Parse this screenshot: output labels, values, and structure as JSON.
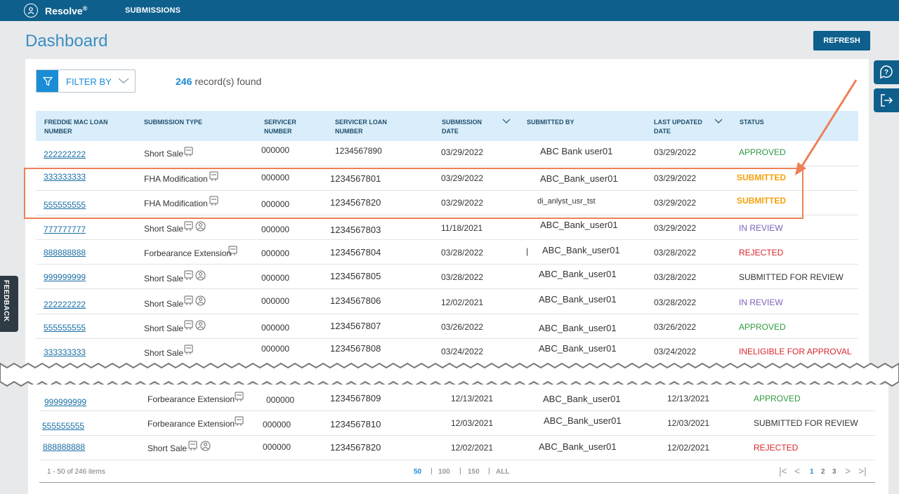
{
  "app": {
    "name": "Resolve",
    "reg": "®",
    "nav": "SUBMISSIONS"
  },
  "page": {
    "title": "Dashboard",
    "refresh_label": "REFRESH"
  },
  "feedback_label": "FEEDBACK",
  "filter": {
    "label": "FILTER BY"
  },
  "records": {
    "count": "246",
    "label": "record(s) found"
  },
  "columns": [
    "FREDDIE MAC LOAN NUMBER",
    "SUBMISSION TYPE",
    "SERVICER NUMBER",
    "SERVICER LOAN NUMBER",
    "SUBMISSION DATE",
    "SUBMITTED BY",
    "LAST UPDATED DATE",
    "STATUS"
  ],
  "rows": [
    {
      "loan": "222222222",
      "type": "Short Sale",
      "servicer": "000000",
      "servicer_loan": "1234567890",
      "sub_date": "03/29/2022",
      "by": "ABC  Bank  user01",
      "updated": "03/29/2022",
      "status": "APPROVED"
    },
    {
      "loan": "333333333",
      "type": "FHA Modification",
      "servicer": "000000",
      "servicer_loan": "1234567801",
      "sub_date": "03/29/2022",
      "by": "ABC_Bank_user01",
      "updated": "03/29/2022",
      "status": "SUBMITTED"
    },
    {
      "loan": "555555555",
      "type": "FHA Modification",
      "servicer": "000000",
      "servicer_loan": "1234567820",
      "sub_date": "03/29/2022",
      "by": "di_anlyst_usr_tst",
      "updated": "03/29/2022",
      "status": "SUBMITTED"
    },
    {
      "loan": "777777777",
      "type": "Short Sale",
      "servicer": "000000",
      "servicer_loan": "1234567803",
      "sub_date": "11/18/2021",
      "by": "ABC_Bank_user01",
      "updated": "03/29/2022",
      "status": "IN REVIEW"
    },
    {
      "loan": "888888888",
      "type": "Forbearance Extension",
      "servicer": "000000",
      "servicer_loan": "1234567804",
      "sub_date": "03/28/2022",
      "by": "ABC_Bank_user01",
      "updated": "03/28/2022",
      "status": "REJECTED"
    },
    {
      "loan": "999999999",
      "type": "Short Sale",
      "servicer": "000000",
      "servicer_loan": "1234567805",
      "sub_date": "03/28/2022",
      "by": "ABC_Bank_user01",
      "updated": "03/28/2022",
      "status": "SUBMITTED FOR REVIEW"
    },
    {
      "loan": "222222222",
      "type": "Short Sale",
      "servicer": "000000",
      "servicer_loan": "1234567806",
      "sub_date": "12/02/2021",
      "by": "ABC_Bank_user01",
      "updated": "03/28/2022",
      "status": "IN REVIEW"
    },
    {
      "loan": "555555555",
      "type": "Short Sale",
      "servicer": "000000",
      "servicer_loan": "1234567807",
      "sub_date": "03/26/2022",
      "by": "ABC_Bank_user01",
      "updated": "03/26/2022",
      "status": "APPROVED"
    },
    {
      "loan": "333333333",
      "type": "Short Sale",
      "servicer": "000000",
      "servicer_loan": "1234567808",
      "sub_date": "03/24/2022",
      "by": "ABC_Bank_user01",
      "updated": "03/24/2022",
      "status": "INELIGIBLE FOR APPROVAL"
    }
  ],
  "rows_bottom": [
    {
      "loan": "999999999",
      "type": "Forbearance Extension",
      "servicer": "000000",
      "servicer_loan": "1234567809",
      "sub_date": "12/13/2021",
      "by": "ABC_Bank_user01",
      "updated": "12/13/2021",
      "status": "APPROVED"
    },
    {
      "loan": "555555555",
      "type": "Forbearance Extension",
      "servicer": "000000",
      "servicer_loan": "1234567810",
      "sub_date": "12/03/2021",
      "by": "ABC_Bank_user01",
      "updated": "12/03/2021",
      "status": "SUBMITTED FOR REVIEW"
    },
    {
      "loan": "888888888",
      "type": "Short Sale",
      "servicer": "000000",
      "servicer_loan": "1234567820",
      "sub_date": "12/02/2021",
      "by": "ABC_Bank_user01",
      "updated": "12/02/2021",
      "status": "REJECTED"
    }
  ],
  "pager": {
    "range": "1 - 50 of 246 items",
    "sizes": [
      "50",
      "100",
      "150",
      "ALL"
    ],
    "active_size": "50",
    "pages": [
      "1",
      "2",
      "3"
    ],
    "active_page": "1"
  },
  "colors": {
    "brand": "#0e5f8c",
    "accent": "#1a8dd6",
    "highlight": "#ee8057"
  },
  "icons": [
    "help-icon",
    "logout-icon",
    "filter-icon",
    "document-icon",
    "person-icon",
    "sort-chevron-icon"
  ]
}
